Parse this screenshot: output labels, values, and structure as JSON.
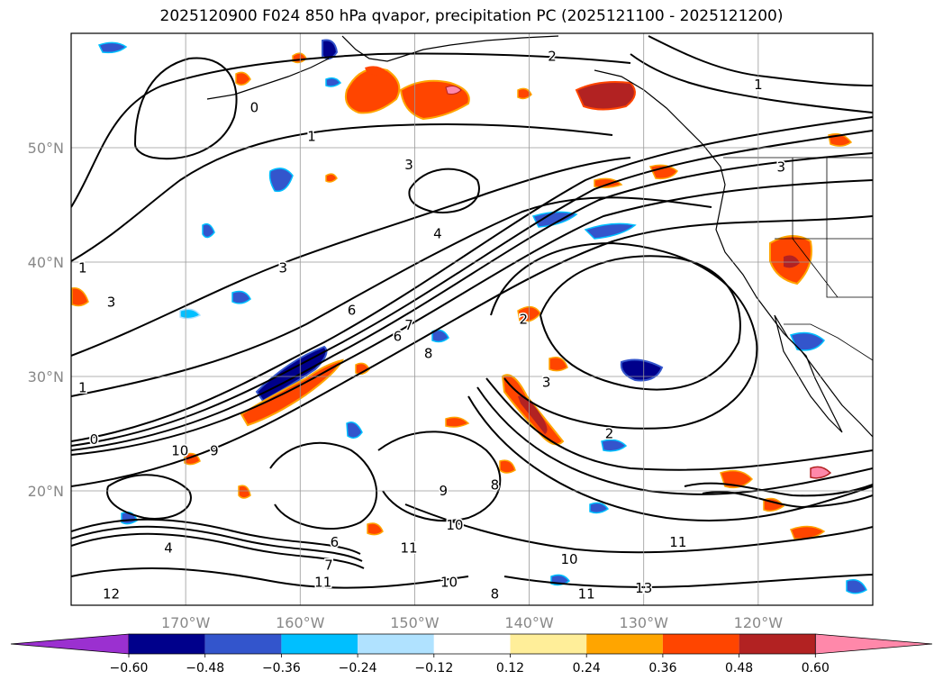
{
  "title": "2025120900 F024 850 hPa qvapor, precipitation PC (2025121100 - 2025121200)",
  "map": {
    "lon_range": [
      -180,
      -110
    ],
    "lat_range": [
      10,
      60
    ],
    "lon_ticks": [
      {
        "value": -170,
        "label": "170°W"
      },
      {
        "value": -160,
        "label": "160°W"
      },
      {
        "value": -150,
        "label": "150°W"
      },
      {
        "value": -140,
        "label": "140°W"
      },
      {
        "value": -130,
        "label": "130°W"
      },
      {
        "value": -120,
        "label": "120°W"
      }
    ],
    "lat_ticks": [
      {
        "value": 20,
        "label": "20°N"
      },
      {
        "value": 30,
        "label": "30°N"
      },
      {
        "value": 40,
        "label": "40°N"
      },
      {
        "value": 50,
        "label": "50°N"
      }
    ],
    "gridlines": true,
    "contour_labels": [
      {
        "text": "0",
        "lon": -164,
        "lat": 53.5
      },
      {
        "text": "1",
        "lon": -159,
        "lat": 51
      },
      {
        "text": "2",
        "lon": -138,
        "lat": 58
      },
      {
        "text": "1",
        "lon": -120,
        "lat": 55.5
      },
      {
        "text": "3",
        "lon": -150.5,
        "lat": 48.5
      },
      {
        "text": "3",
        "lon": -118,
        "lat": 48.3
      },
      {
        "text": "4",
        "lon": -148,
        "lat": 42.5
      },
      {
        "text": "3",
        "lon": -161.5,
        "lat": 39.5
      },
      {
        "text": "1",
        "lon": -179,
        "lat": 39.5
      },
      {
        "text": "3",
        "lon": -176.5,
        "lat": 36.5
      },
      {
        "text": "6",
        "lon": -155.5,
        "lat": 35.8
      },
      {
        "text": "7",
        "lon": -150.5,
        "lat": 34.5
      },
      {
        "text": "6",
        "lon": -151.5,
        "lat": 33.5
      },
      {
        "text": "2",
        "lon": -140.5,
        "lat": 35
      },
      {
        "text": "3",
        "lon": -138.5,
        "lat": 29.5
      },
      {
        "text": "8",
        "lon": -148.8,
        "lat": 32
      },
      {
        "text": "1",
        "lon": -179,
        "lat": 29
      },
      {
        "text": "0",
        "lon": -178,
        "lat": 24.5
      },
      {
        "text": "10",
        "lon": -170.5,
        "lat": 23.5
      },
      {
        "text": "9",
        "lon": -167.5,
        "lat": 23.5
      },
      {
        "text": "2",
        "lon": -133,
        "lat": 25
      },
      {
        "text": "9",
        "lon": -147.5,
        "lat": 20
      },
      {
        "text": "8",
        "lon": -143,
        "lat": 20.5
      },
      {
        "text": "10",
        "lon": -146.5,
        "lat": 17
      },
      {
        "text": "11",
        "lon": -150.5,
        "lat": 15
      },
      {
        "text": "11",
        "lon": -127,
        "lat": 15.5
      },
      {
        "text": "10",
        "lon": -136.5,
        "lat": 14
      },
      {
        "text": "12",
        "lon": -176.5,
        "lat": 11
      },
      {
        "text": "11",
        "lon": -158,
        "lat": 12
      },
      {
        "text": "7",
        "lon": -157.5,
        "lat": 13.5
      },
      {
        "text": "10",
        "lon": -147,
        "lat": 12
      },
      {
        "text": "8",
        "lon": -143,
        "lat": 11
      },
      {
        "text": "11",
        "lon": -135,
        "lat": 11
      },
      {
        "text": "13",
        "lon": -130,
        "lat": 11.5
      },
      {
        "text": "6",
        "lon": -157,
        "lat": 15.5
      },
      {
        "text": "4",
        "lon": -171.5,
        "lat": 15
      }
    ]
  },
  "colorbar": {
    "colors": [
      "#9b30d0",
      "#00008b",
      "#3355cc",
      "#00bfff",
      "#b0e2ff",
      "#ffffff",
      "#ffee99",
      "#ffa500",
      "#ff4500",
      "#b22222",
      "#ff88aa"
    ],
    "tick_labels": [
      "−0.60",
      "−0.48",
      "−0.36",
      "−0.24",
      "−0.12",
      "0.12",
      "0.24",
      "0.36",
      "0.48",
      "0.60"
    ]
  }
}
